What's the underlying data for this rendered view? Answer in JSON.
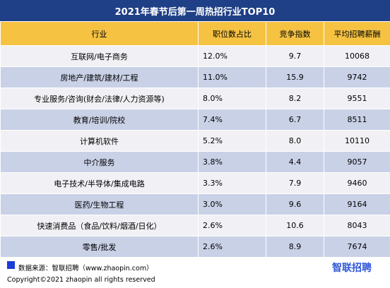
{
  "title": "2021年春节后第一周热招行业TOP10",
  "headers": [
    "行业",
    "职位数占比",
    "竞争指数",
    "平均招聘薪酬"
  ],
  "rows": [
    {
      "industry": "互联网/电子商务",
      "share": "12.0%",
      "competition": "9.7",
      "salary": "10068"
    },
    {
      "industry": "房地产/建筑/建材/工程",
      "share": "11.0%",
      "competition": "15.9",
      "salary": "9742"
    },
    {
      "industry": "专业服务/咨询(财会/法律/人力资源等)",
      "share": "8.0%",
      "competition": "8.2",
      "salary": "9551"
    },
    {
      "industry": "教育/培训/院校",
      "share": "7.4%",
      "competition": "6.7",
      "salary": "8511"
    },
    {
      "industry": "计算机软件",
      "share": "5.2%",
      "competition": "8.0",
      "salary": "10110"
    },
    {
      "industry": "中介服务",
      "share": "3.8%",
      "competition": "4.4",
      "salary": "9057"
    },
    {
      "industry": "电子技术/半导体/集成电路",
      "share": "3.3%",
      "competition": "7.9",
      "salary": "9460"
    },
    {
      "industry": "医药/生物工程",
      "share": "3.0%",
      "competition": "9.6",
      "salary": "9164"
    },
    {
      "industry": "快速消费品（食品/饮料/烟酒/日化）",
      "share": "2.6%",
      "competition": "10.6",
      "salary": "8043"
    },
    {
      "industry": "零售/批发",
      "share": "2.6%",
      "competition": "8.9",
      "salary": "7674"
    }
  ],
  "source": "数据来源：智联招聘（www.zhaopin.com）",
  "logo": "智联招聘",
  "copyright": "Copyright©2021 zhaopin all rights reserved",
  "colors": {
    "title_bg": "#1f3f86",
    "header_bg": "#f5c242",
    "row_light": "#f1f1f5",
    "row_dark": "#c9d1e7",
    "logo": "#2f57d8"
  }
}
